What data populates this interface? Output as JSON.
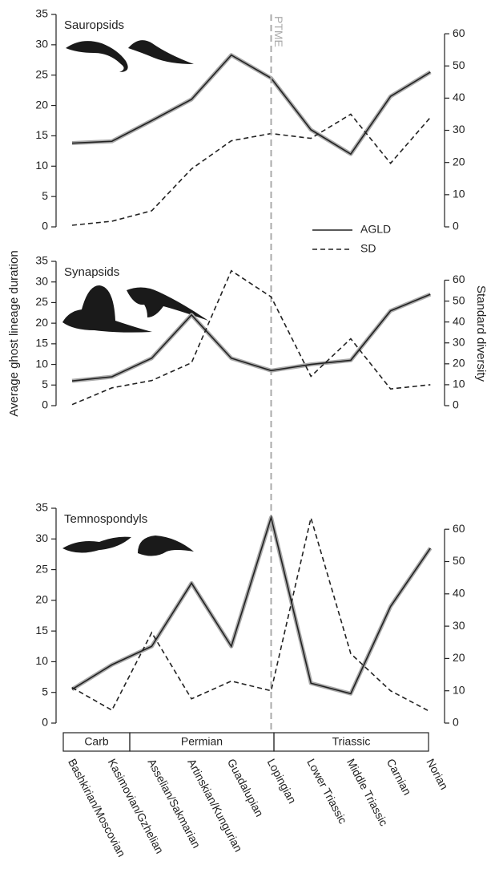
{
  "chart_data": [
    {
      "type": "line",
      "title": "Sauropsids",
      "annotation": "PTME",
      "annotation_at": "Lopingian",
      "legend": "lower right",
      "ylim": [
        0,
        35
      ],
      "yticks": [
        0,
        5,
        10,
        15,
        20,
        25,
        30,
        35
      ],
      "y2lim": [
        0,
        66
      ],
      "y2ticks": [
        0,
        10,
        20,
        30,
        40,
        50,
        60
      ],
      "series": [
        {
          "name": "AGLD",
          "color": "#222222",
          "style": "solid",
          "values": [
            13.8,
            14.1,
            17.5,
            21,
            28.3,
            24.5,
            16,
            12,
            21.5,
            25.5
          ]
        },
        {
          "name": "SD",
          "color": "#222222",
          "style": "dashed",
          "axis": "y2",
          "values": [
            0.5,
            1.75,
            5,
            18,
            26.75,
            29,
            27.5,
            35,
            19.75,
            34
          ]
        }
      ]
    },
    {
      "type": "line",
      "title": "Synapsids",
      "y_label": "Average ghost lineage duration",
      "y2_label": "Standard diversity",
      "ylim": [
        0,
        35
      ],
      "yticks": [
        0,
        5,
        10,
        15,
        20,
        25,
        30,
        35
      ],
      "y2lim": [
        0,
        69
      ],
      "y2ticks": [
        0,
        10,
        20,
        30,
        40,
        50,
        60
      ],
      "series": [
        {
          "name": "AGLD",
          "color": "#222222",
          "style": "solid",
          "values": [
            6,
            7,
            11.5,
            22,
            11.5,
            8.5,
            10,
            11,
            23,
            27
          ]
        },
        {
          "name": "SD",
          "color": "#222222",
          "style": "dashed",
          "axis": "y2",
          "values": [
            0.5,
            8.5,
            12,
            20.5,
            64.5,
            52,
            14,
            32,
            8,
            10
          ]
        }
      ]
    },
    {
      "type": "line",
      "title": "Temnospondyls",
      "periods": [
        "Carb",
        "Permian",
        "Triassic"
      ],
      "categories": [
        "Bashkirian/Moscovian",
        "Kasimovian/Gzhelian",
        "Asselian/Sakmarian",
        "Artinskian/Kungurian",
        "Guadalupian",
        "Lopingian",
        "Lower Triassic",
        "Middle Triassic",
        "Carnian",
        "Norian"
      ],
      "ylim": [
        0,
        35
      ],
      "yticks": [
        0,
        5,
        10,
        15,
        20,
        25,
        30,
        35
      ],
      "y2lim": [
        0,
        66.5
      ],
      "y2ticks": [
        0,
        10,
        20,
        30,
        40,
        50,
        60
      ],
      "series": [
        {
          "name": "AGLD",
          "color": "#222222",
          "style": "solid",
          "values": [
            5.5,
            9.5,
            12.5,
            22.8,
            12.5,
            33.5,
            6.5,
            4.8,
            19,
            28.5
          ]
        },
        {
          "name": "SD",
          "color": "#222222",
          "style": "dashed",
          "axis": "y2",
          "values": [
            11,
            4,
            28,
            7.5,
            13,
            10,
            63.5,
            21.5,
            10,
            3.5
          ]
        }
      ]
    }
  ]
}
